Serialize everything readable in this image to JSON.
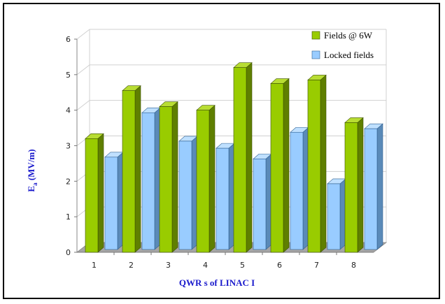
{
  "chart_data": {
    "type": "bar",
    "categories": [
      "1",
      "2",
      "3",
      "4",
      "5",
      "6",
      "7",
      "8"
    ],
    "series": [
      {
        "name": "Fields @ 6W",
        "values": [
          3.2,
          4.55,
          4.1,
          4.0,
          5.2,
          4.75,
          4.85,
          3.65
        ]
      },
      {
        "name": "Locked fields",
        "values": [
          2.6,
          3.85,
          3.05,
          2.85,
          2.55,
          3.3,
          1.85,
          3.4
        ]
      }
    ],
    "ylim": [
      0,
      6
    ],
    "yticks": [
      "0",
      "1",
      "2",
      "3",
      "4",
      "5",
      "6"
    ],
    "xlabel": "QWR s of LINAC I",
    "ylabel_main": "E",
    "ylabel_sub": "a",
    "ylabel_unit": " (MV/m)",
    "legend_position": "top-right",
    "grid": true,
    "style": "3d-clustered-column",
    "colors": {
      "series1_front": "#99cc00",
      "series1_side": "#5f7f00",
      "series1_top": "#b8dd33",
      "series2_front": "#99ccff",
      "series2_side": "#5a8ab8",
      "series2_top": "#bfe0ff",
      "floor": "#a6a6a6",
      "axis_title": "#1a1acc"
    }
  }
}
